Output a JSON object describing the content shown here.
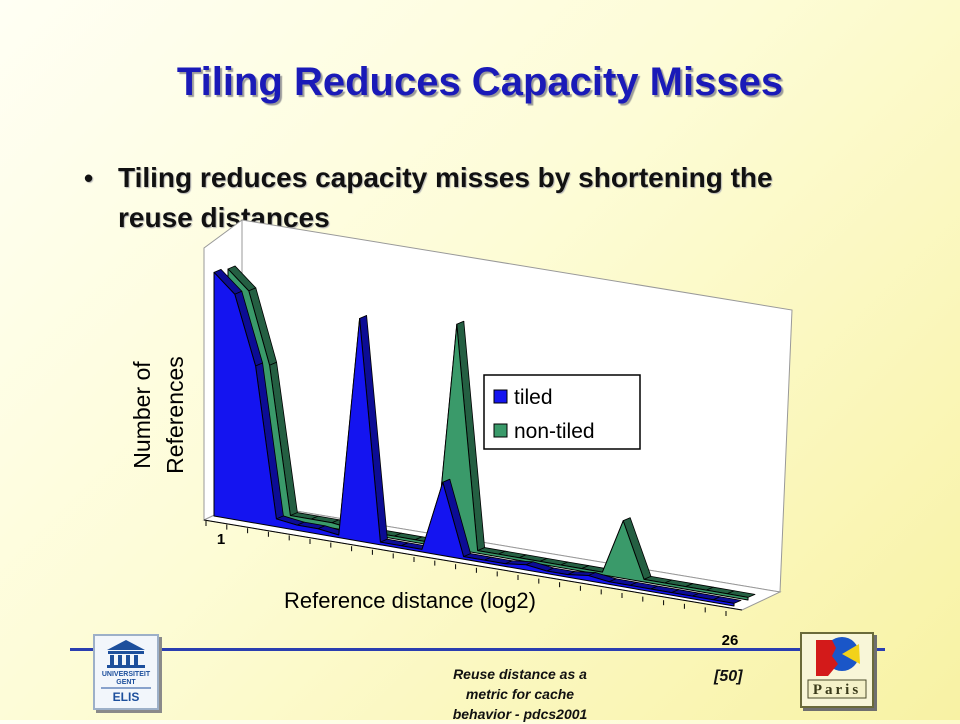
{
  "slide": {
    "title": "Tiling Reduces Capacity Misses",
    "bullet": "Tiling reduces capacity misses by shortening the reuse distances",
    "footer_lines": [
      "Reuse distance as a",
      "metric for cache",
      "behavior - pdcs2001"
    ],
    "page_number": "[50]",
    "logo_left": {
      "line1": "UNIVERSITEIT",
      "line2": "GENT",
      "line3": "ELIS"
    },
    "logo_right": {
      "text": "Paris"
    }
  },
  "chart_data": {
    "type": "area",
    "xlabel": "Reference distance (log2)",
    "ylabel_lines": [
      "Number of",
      "References"
    ],
    "x_tick_labels": [
      "1",
      "26"
    ],
    "x": [
      1,
      2,
      3,
      4,
      5,
      6,
      7,
      8,
      9,
      10,
      11,
      12,
      13,
      14,
      15,
      16,
      17,
      18,
      19,
      20,
      21,
      22,
      23,
      24,
      25,
      26
    ],
    "legend_position": "center-right",
    "series": [
      {
        "name": "tiled",
        "color": "#1414f0",
        "values": [
          0.93,
          0.86,
          0.6,
          0.03,
          0.02,
          0.02,
          0.01,
          0.85,
          0.01,
          0.01,
          0.01,
          0.28,
          0.01,
          0.01,
          0.01,
          0.02,
          0.01,
          0.01,
          0.02,
          0.01,
          0.01,
          0.01,
          0.01,
          0.01,
          0.01,
          0.01
        ]
      },
      {
        "name": "non-tiled",
        "color": "#3a9a6a",
        "values": [
          0.92,
          0.85,
          0.58,
          0.02,
          0.02,
          0.02,
          0.01,
          0.01,
          0.01,
          0.01,
          0.01,
          0.86,
          0.01,
          0.01,
          0.01,
          0.01,
          0.01,
          0.01,
          0.01,
          0.22,
          0.01,
          0.01,
          0.01,
          0.01,
          0.01,
          0.01
        ]
      }
    ]
  }
}
